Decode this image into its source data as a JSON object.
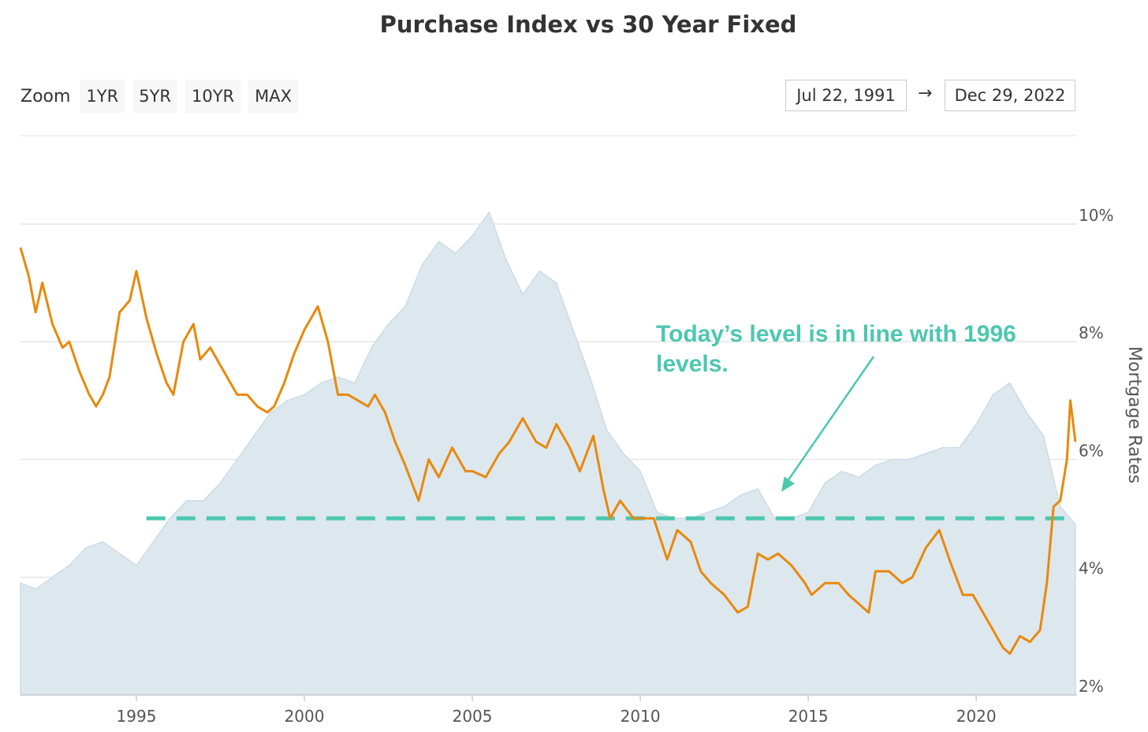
{
  "chart_data": {
    "type": "area",
    "title": "Purchase Index vs 30 Year Fixed",
    "zoom": {
      "label": "Zoom",
      "buttons": [
        "1YR",
        "5YR",
        "10YR",
        "MAX"
      ]
    },
    "range": {
      "from": "Jul 22, 1991",
      "arrow": "→",
      "to": "Dec 29, 2022"
    },
    "x_axis": {
      "range": [
        1991.55,
        2023.0
      ],
      "ticks": [
        "1995",
        "2000",
        "2005",
        "2010",
        "2015",
        "2020"
      ]
    },
    "y_axis_right": {
      "label": "Mortgage Rates",
      "range": [
        2,
        11.5
      ],
      "ticks": [
        "2%",
        "4%",
        "6%",
        "8%",
        "10%"
      ]
    },
    "series": [
      {
        "name": "30 Year Fixed",
        "color": "#e8890c",
        "points": [
          [
            1991.55,
            9.6
          ],
          [
            1991.8,
            9.1
          ],
          [
            1992.0,
            8.5
          ],
          [
            1992.2,
            9.0
          ],
          [
            1992.5,
            8.3
          ],
          [
            1992.8,
            7.9
          ],
          [
            1993.0,
            8.0
          ],
          [
            1993.3,
            7.5
          ],
          [
            1993.6,
            7.1
          ],
          [
            1993.8,
            6.9
          ],
          [
            1994.0,
            7.1
          ],
          [
            1994.2,
            7.4
          ],
          [
            1994.5,
            8.5
          ],
          [
            1994.8,
            8.7
          ],
          [
            1995.0,
            9.2
          ],
          [
            1995.3,
            8.4
          ],
          [
            1995.6,
            7.8
          ],
          [
            1995.9,
            7.3
          ],
          [
            1996.1,
            7.1
          ],
          [
            1996.4,
            8.0
          ],
          [
            1996.7,
            8.3
          ],
          [
            1996.9,
            7.7
          ],
          [
            1997.2,
            7.9
          ],
          [
            1997.5,
            7.6
          ],
          [
            1997.8,
            7.3
          ],
          [
            1998.0,
            7.1
          ],
          [
            1998.3,
            7.1
          ],
          [
            1998.6,
            6.9
          ],
          [
            1998.9,
            6.8
          ],
          [
            1999.1,
            6.9
          ],
          [
            1999.4,
            7.3
          ],
          [
            1999.7,
            7.8
          ],
          [
            2000.0,
            8.2
          ],
          [
            2000.4,
            8.6
          ],
          [
            2000.7,
            8.0
          ],
          [
            2001.0,
            7.1
          ],
          [
            2001.3,
            7.1
          ],
          [
            2001.6,
            7.0
          ],
          [
            2001.9,
            6.9
          ],
          [
            2002.1,
            7.1
          ],
          [
            2002.4,
            6.8
          ],
          [
            2002.7,
            6.3
          ],
          [
            2003.0,
            5.9
          ],
          [
            2003.4,
            5.3
          ],
          [
            2003.7,
            6.0
          ],
          [
            2004.0,
            5.7
          ],
          [
            2004.4,
            6.2
          ],
          [
            2004.8,
            5.8
          ],
          [
            2005.0,
            5.8
          ],
          [
            2005.4,
            5.7
          ],
          [
            2005.8,
            6.1
          ],
          [
            2006.1,
            6.3
          ],
          [
            2006.5,
            6.7
          ],
          [
            2006.9,
            6.3
          ],
          [
            2007.2,
            6.2
          ],
          [
            2007.5,
            6.6
          ],
          [
            2007.9,
            6.2
          ],
          [
            2008.2,
            5.8
          ],
          [
            2008.6,
            6.4
          ],
          [
            2008.9,
            5.5
          ],
          [
            2009.1,
            5.0
          ],
          [
            2009.4,
            5.3
          ],
          [
            2009.8,
            5.0
          ],
          [
            2010.1,
            5.0
          ],
          [
            2010.4,
            5.0
          ],
          [
            2010.8,
            4.3
          ],
          [
            2011.1,
            4.8
          ],
          [
            2011.5,
            4.6
          ],
          [
            2011.8,
            4.1
          ],
          [
            2012.1,
            3.9
          ],
          [
            2012.5,
            3.7
          ],
          [
            2012.9,
            3.4
          ],
          [
            2013.2,
            3.5
          ],
          [
            2013.5,
            4.4
          ],
          [
            2013.8,
            4.3
          ],
          [
            2014.1,
            4.4
          ],
          [
            2014.5,
            4.2
          ],
          [
            2014.9,
            3.9
          ],
          [
            2015.1,
            3.7
          ],
          [
            2015.5,
            3.9
          ],
          [
            2015.9,
            3.9
          ],
          [
            2016.2,
            3.7
          ],
          [
            2016.6,
            3.5
          ],
          [
            2016.8,
            3.4
          ],
          [
            2017.0,
            4.1
          ],
          [
            2017.4,
            4.1
          ],
          [
            2017.8,
            3.9
          ],
          [
            2018.1,
            4.0
          ],
          [
            2018.5,
            4.5
          ],
          [
            2018.9,
            4.8
          ],
          [
            2019.2,
            4.3
          ],
          [
            2019.6,
            3.7
          ],
          [
            2019.9,
            3.7
          ],
          [
            2020.2,
            3.4
          ],
          [
            2020.5,
            3.1
          ],
          [
            2020.8,
            2.8
          ],
          [
            2021.0,
            2.7
          ],
          [
            2021.3,
            3.0
          ],
          [
            2021.6,
            2.9
          ],
          [
            2021.9,
            3.1
          ],
          [
            2022.1,
            3.9
          ],
          [
            2022.3,
            5.2
          ],
          [
            2022.5,
            5.3
          ],
          [
            2022.7,
            6.0
          ],
          [
            2022.8,
            7.0
          ],
          [
            2022.95,
            6.3
          ]
        ]
      },
      {
        "name": "Purchase Index",
        "color": "#dde7ee",
        "points": [
          [
            1991.55,
            3.9
          ],
          [
            1992.0,
            3.8
          ],
          [
            1992.5,
            4.0
          ],
          [
            1993.0,
            4.2
          ],
          [
            1993.5,
            4.5
          ],
          [
            1994.0,
            4.6
          ],
          [
            1994.5,
            4.4
          ],
          [
            1995.0,
            4.2
          ],
          [
            1995.5,
            4.6
          ],
          [
            1996.0,
            5.0
          ],
          [
            1996.5,
            5.3
          ],
          [
            1997.0,
            5.3
          ],
          [
            1997.5,
            5.6
          ],
          [
            1998.0,
            6.0
          ],
          [
            1998.5,
            6.4
          ],
          [
            1999.0,
            6.8
          ],
          [
            1999.5,
            7.0
          ],
          [
            2000.0,
            7.1
          ],
          [
            2000.5,
            7.3
          ],
          [
            2001.0,
            7.4
          ],
          [
            2001.5,
            7.3
          ],
          [
            2002.0,
            7.9
          ],
          [
            2002.5,
            8.3
          ],
          [
            2003.0,
            8.6
          ],
          [
            2003.5,
            9.3
          ],
          [
            2004.0,
            9.7
          ],
          [
            2004.5,
            9.5
          ],
          [
            2005.0,
            9.8
          ],
          [
            2005.5,
            10.2
          ],
          [
            2006.0,
            9.4
          ],
          [
            2006.5,
            8.8
          ],
          [
            2007.0,
            9.2
          ],
          [
            2007.5,
            9.0
          ],
          [
            2008.0,
            8.2
          ],
          [
            2008.5,
            7.4
          ],
          [
            2009.0,
            6.5
          ],
          [
            2009.5,
            6.1
          ],
          [
            2010.0,
            5.8
          ],
          [
            2010.5,
            5.1
          ],
          [
            2011.0,
            5.0
          ],
          [
            2011.5,
            5.0
          ],
          [
            2012.0,
            5.1
          ],
          [
            2012.5,
            5.2
          ],
          [
            2013.0,
            5.4
          ],
          [
            2013.5,
            5.5
          ],
          [
            2014.0,
            5.0
          ],
          [
            2014.5,
            5.0
          ],
          [
            2015.0,
            5.1
          ],
          [
            2015.5,
            5.6
          ],
          [
            2016.0,
            5.8
          ],
          [
            2016.5,
            5.7
          ],
          [
            2017.0,
            5.9
          ],
          [
            2017.5,
            6.0
          ],
          [
            2018.0,
            6.0
          ],
          [
            2018.5,
            6.1
          ],
          [
            2019.0,
            6.2
          ],
          [
            2019.5,
            6.2
          ],
          [
            2020.0,
            6.6
          ],
          [
            2020.5,
            7.1
          ],
          [
            2021.0,
            7.3
          ],
          [
            2021.5,
            6.8
          ],
          [
            2022.0,
            6.4
          ],
          [
            2022.5,
            5.2
          ],
          [
            2022.95,
            4.9
          ]
        ]
      }
    ],
    "reference_line": {
      "value": 5.0,
      "from_x": 1995.3,
      "to_x": 2022.95,
      "style": "dashed",
      "color": "#4cc7b0"
    },
    "annotation": {
      "text": "Today’s level is in line with 1996 levels.",
      "color": "#4cc7b0",
      "arrow_to": [
        2014.2,
        5.45
      ]
    },
    "grid": true
  }
}
